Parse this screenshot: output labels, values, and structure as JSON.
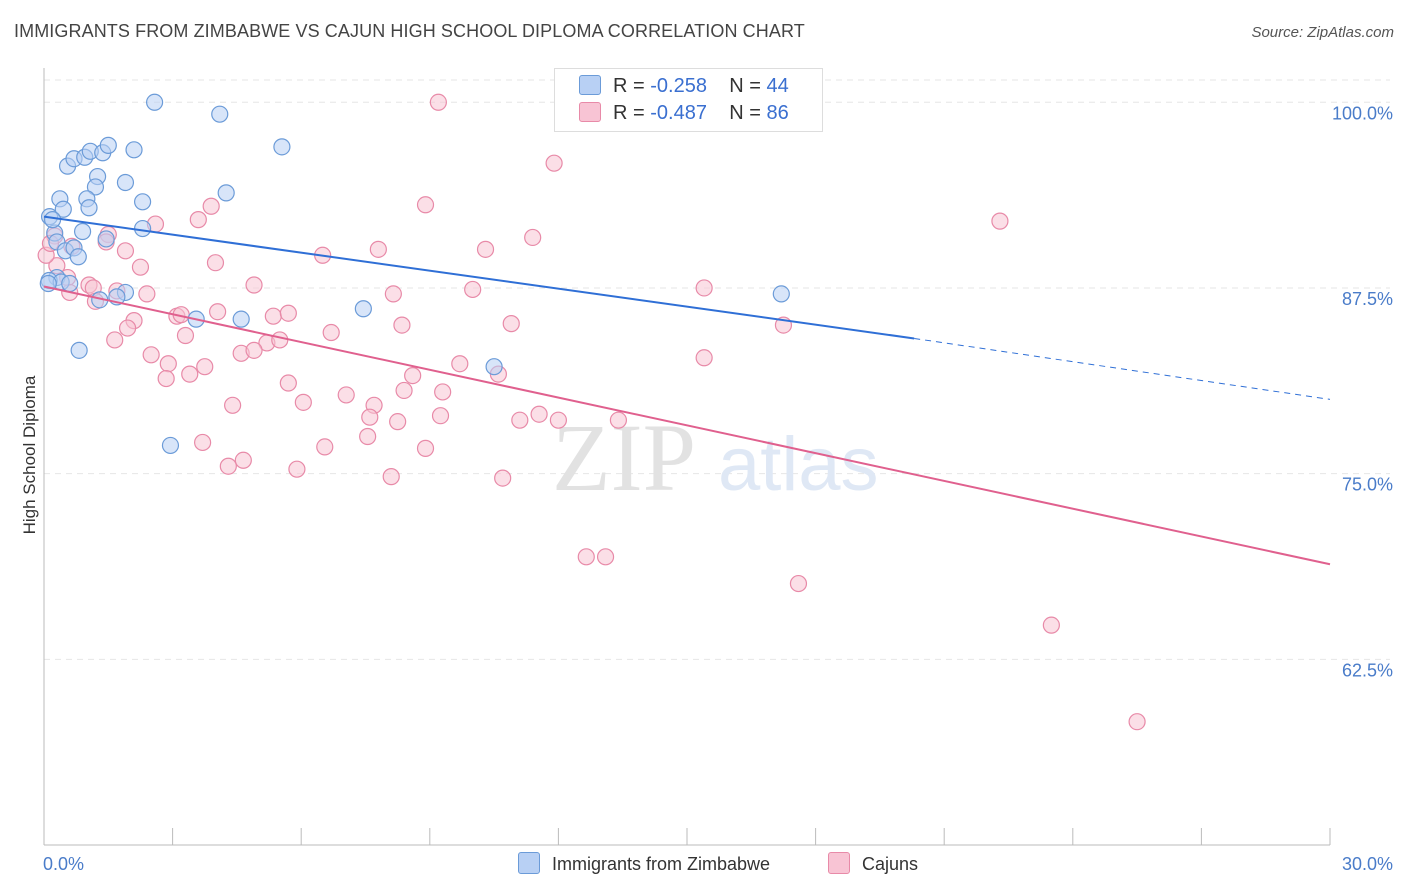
{
  "title": "IMMIGRANTS FROM ZIMBABWE VS CAJUN HIGH SCHOOL DIPLOMA CORRELATION CHART",
  "source": "Source: ZipAtlas.com",
  "watermark": {
    "zip": "ZIP",
    "atlas": "atlas"
  },
  "colors": {
    "blue_fill": "#b8d0f4",
    "blue_stroke": "#6b9bd8",
    "blue_line": "#2f6fd6",
    "pink_fill": "#f8c4d4",
    "pink_stroke": "#e88aa8",
    "pink_line": "#e0608e",
    "grid": "#e6e6e6",
    "tick_text": "#4a7cc9"
  },
  "legend": {
    "rows": [
      {
        "r_label": "R = ",
        "r_value": "-0.258",
        "n_label": "N = ",
        "n_value": "44"
      },
      {
        "r_label": "R = ",
        "r_value": "-0.487",
        "n_label": "N = ",
        "n_value": "86"
      }
    ]
  },
  "bottom_legend": {
    "blue": "Immigrants from Zimbabwe",
    "pink": "Cajuns"
  },
  "chart_data": {
    "type": "scatter",
    "title": "IMMIGRANTS FROM ZIMBABWE VS CAJUN HIGH SCHOOL DIPLOMA CORRELATION CHART",
    "xlabel": "",
    "ylabel": "High School Diploma",
    "xlim": [
      0,
      30
    ],
    "ylim": [
      50,
      101.5
    ],
    "x_tick_labels": [
      "0.0%",
      "30.0%"
    ],
    "y_ticks": [
      62.5,
      75.0,
      87.5,
      100.0
    ],
    "y_tick_labels": [
      "62.5%",
      "75.0%",
      "87.5%",
      "100.0%"
    ],
    "legend_position": "top-center",
    "series": [
      {
        "name": "Immigrants from Zimbabwe",
        "color": "blue",
        "R": -0.258,
        "N": 44,
        "trend": {
          "x0": 0.0,
          "y0": 92.3,
          "x1": 20.3,
          "y1": 84.1,
          "dashed_to_x": 30.0,
          "dashed_to_y": 80.0
        },
        "points": [
          [
            0.13,
            92.3
          ],
          [
            0.37,
            93.5
          ],
          [
            0.45,
            92.8
          ],
          [
            0.3,
            88.2
          ],
          [
            0.55,
            95.7
          ],
          [
            0.7,
            96.2
          ],
          [
            0.95,
            96.3
          ],
          [
            1.08,
            96.7
          ],
          [
            1.37,
            96.6
          ],
          [
            1.5,
            97.1
          ],
          [
            2.1,
            96.8
          ],
          [
            2.58,
            100.0
          ],
          [
            4.1,
            99.2
          ],
          [
            5.55,
            97.0
          ],
          [
            1.25,
            95.0
          ],
          [
            1.2,
            94.3
          ],
          [
            1.9,
            94.6
          ],
          [
            1.0,
            93.5
          ],
          [
            1.05,
            92.9
          ],
          [
            2.3,
            93.3
          ],
          [
            4.25,
            93.9
          ],
          [
            0.25,
            91.2
          ],
          [
            0.3,
            90.6
          ],
          [
            0.5,
            90.0
          ],
          [
            0.7,
            90.2
          ],
          [
            0.9,
            91.3
          ],
          [
            0.8,
            89.6
          ],
          [
            2.3,
            91.5
          ],
          [
            1.45,
            90.8
          ],
          [
            0.12,
            88.0
          ],
          [
            0.4,
            87.9
          ],
          [
            0.6,
            87.8
          ],
          [
            1.3,
            86.7
          ],
          [
            1.9,
            87.2
          ],
          [
            1.7,
            86.9
          ],
          [
            3.55,
            85.4
          ],
          [
            4.6,
            85.4
          ],
          [
            7.45,
            86.1
          ],
          [
            0.82,
            83.3
          ],
          [
            10.5,
            82.2
          ],
          [
            17.2,
            87.1
          ],
          [
            2.95,
            76.9
          ],
          [
            0.2,
            92.1
          ],
          [
            0.1,
            87.8
          ]
        ]
      },
      {
        "name": "Cajuns",
        "color": "pink",
        "R": -0.487,
        "N": 86,
        "trend": {
          "x0": 0.0,
          "y0": 87.6,
          "x1": 30.0,
          "y1": 68.9
        },
        "points": [
          [
            9.2,
            100.0
          ],
          [
            11.9,
            95.9
          ],
          [
            22.3,
            92.0
          ],
          [
            8.9,
            93.1
          ],
          [
            3.9,
            93.0
          ],
          [
            3.6,
            92.1
          ],
          [
            2.6,
            91.8
          ],
          [
            0.25,
            91.0
          ],
          [
            1.5,
            91.1
          ],
          [
            0.65,
            90.3
          ],
          [
            1.45,
            90.6
          ],
          [
            11.4,
            90.9
          ],
          [
            10.3,
            90.1
          ],
          [
            7.8,
            90.1
          ],
          [
            6.5,
            89.7
          ],
          [
            1.9,
            90.0
          ],
          [
            4.0,
            89.2
          ],
          [
            2.25,
            88.9
          ],
          [
            0.3,
            89.0
          ],
          [
            0.55,
            88.2
          ],
          [
            1.05,
            87.7
          ],
          [
            1.15,
            87.5
          ],
          [
            1.7,
            87.3
          ],
          [
            2.4,
            87.1
          ],
          [
            4.9,
            87.7
          ],
          [
            8.15,
            87.1
          ],
          [
            10.0,
            87.4
          ],
          [
            15.4,
            87.5
          ],
          [
            0.6,
            87.2
          ],
          [
            1.2,
            86.6
          ],
          [
            3.1,
            85.6
          ],
          [
            3.2,
            85.7
          ],
          [
            4.05,
            85.9
          ],
          [
            5.35,
            85.6
          ],
          [
            5.7,
            85.8
          ],
          [
            8.35,
            85.0
          ],
          [
            10.9,
            85.1
          ],
          [
            17.25,
            85.0
          ],
          [
            2.1,
            85.3
          ],
          [
            1.95,
            84.8
          ],
          [
            1.65,
            84.0
          ],
          [
            3.3,
            84.3
          ],
          [
            6.7,
            84.5
          ],
          [
            5.2,
            83.8
          ],
          [
            5.5,
            84.0
          ],
          [
            4.6,
            83.1
          ],
          [
            4.9,
            83.3
          ],
          [
            2.5,
            83.0
          ],
          [
            2.9,
            82.4
          ],
          [
            3.75,
            82.2
          ],
          [
            9.7,
            82.4
          ],
          [
            15.4,
            82.8
          ],
          [
            3.4,
            81.7
          ],
          [
            2.85,
            81.4
          ],
          [
            5.7,
            81.1
          ],
          [
            8.6,
            81.6
          ],
          [
            8.4,
            80.6
          ],
          [
            9.3,
            80.5
          ],
          [
            10.6,
            81.7
          ],
          [
            6.05,
            79.8
          ],
          [
            7.05,
            80.3
          ],
          [
            7.7,
            79.6
          ],
          [
            4.4,
            79.6
          ],
          [
            7.6,
            78.8
          ],
          [
            8.25,
            78.5
          ],
          [
            9.25,
            78.9
          ],
          [
            11.1,
            78.6
          ],
          [
            11.55,
            79.0
          ],
          [
            12.0,
            78.6
          ],
          [
            13.4,
            78.6
          ],
          [
            7.55,
            77.5
          ],
          [
            3.7,
            77.1
          ],
          [
            6.55,
            76.8
          ],
          [
            8.9,
            76.7
          ],
          [
            4.65,
            75.9
          ],
          [
            4.3,
            75.5
          ],
          [
            5.9,
            75.3
          ],
          [
            8.1,
            74.8
          ],
          [
            10.7,
            74.7
          ],
          [
            12.65,
            69.4
          ],
          [
            13.1,
            69.4
          ],
          [
            17.6,
            67.6
          ],
          [
            23.5,
            64.8
          ],
          [
            25.5,
            58.3
          ],
          [
            0.05,
            89.7
          ],
          [
            0.15,
            90.5
          ]
        ]
      }
    ]
  }
}
